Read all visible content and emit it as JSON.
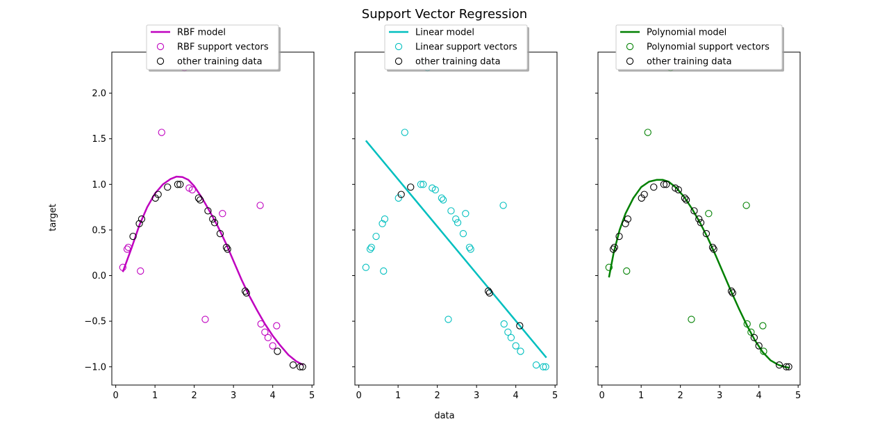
{
  "figure": {
    "title": "Support Vector Regression",
    "xlabel": "data",
    "ylabel": "target"
  },
  "chart_data": [
    {
      "type": "scatter",
      "panel": "rbf",
      "color": "#bf00bf",
      "xlim": [
        -0.1,
        5.05
      ],
      "ylim": [
        -1.2,
        2.45
      ],
      "xticks": [
        0,
        1,
        2,
        3,
        4,
        5
      ],
      "yticks": [
        -1.0,
        -0.5,
        0.0,
        0.5,
        1.0,
        1.5,
        2.0
      ],
      "ytick_labels": [
        "−1.0",
        "−0.5",
        "0.0",
        "0.5",
        "1.0",
        "1.5",
        "2.0"
      ],
      "show_ytick_labels": true,
      "legend": {
        "placement": "upper-center",
        "model_label": "RBF model",
        "support_label": "RBF support vectors",
        "other_label": "other training data"
      },
      "model_curve": {
        "x": [
          0.18,
          0.4,
          0.6,
          0.8,
          1.0,
          1.2,
          1.4,
          1.55,
          1.7,
          1.85,
          2.0,
          2.2,
          2.4,
          2.6,
          2.8,
          3.0,
          3.2,
          3.4,
          3.6,
          3.8,
          4.0,
          4.2,
          4.4,
          4.6,
          4.78
        ],
        "y": [
          0.04,
          0.3,
          0.55,
          0.75,
          0.9,
          1.0,
          1.06,
          1.085,
          1.08,
          1.05,
          0.98,
          0.85,
          0.7,
          0.54,
          0.36,
          0.16,
          -0.04,
          -0.22,
          -0.38,
          -0.53,
          -0.66,
          -0.77,
          -0.87,
          -0.94,
          -0.98
        ]
      },
      "support_vectors": [
        [
          0.18,
          0.09
        ],
        [
          0.29,
          0.29
        ],
        [
          0.32,
          0.31
        ],
        [
          0.63,
          0.05
        ],
        [
          1.17,
          1.57
        ],
        [
          1.75,
          2.28
        ],
        [
          1.87,
          0.96
        ],
        [
          1.95,
          0.94
        ],
        [
          2.28,
          -0.48
        ],
        [
          2.72,
          0.68
        ],
        [
          3.68,
          0.77
        ],
        [
          3.7,
          -0.53
        ],
        [
          3.8,
          -0.62
        ],
        [
          3.88,
          -0.68
        ],
        [
          4.0,
          -0.77
        ],
        [
          4.1,
          -0.55
        ]
      ],
      "other_data": [
        [
          0.44,
          0.43
        ],
        [
          0.6,
          0.57
        ],
        [
          0.66,
          0.62
        ],
        [
          1.01,
          0.85
        ],
        [
          1.08,
          0.89
        ],
        [
          1.32,
          0.97
        ],
        [
          1.58,
          1.0
        ],
        [
          1.64,
          1.0
        ],
        [
          2.11,
          0.85
        ],
        [
          2.15,
          0.83
        ],
        [
          2.35,
          0.71
        ],
        [
          2.47,
          0.62
        ],
        [
          2.52,
          0.58
        ],
        [
          2.66,
          0.46
        ],
        [
          2.82,
          0.31
        ],
        [
          2.85,
          0.29
        ],
        [
          3.3,
          -0.17
        ],
        [
          3.33,
          -0.19
        ],
        [
          4.12,
          -0.83
        ],
        [
          4.52,
          -0.98
        ],
        [
          4.7,
          -1.0
        ],
        [
          4.76,
          -1.0
        ]
      ]
    },
    {
      "type": "scatter",
      "panel": "linear",
      "color": "#00bfbf",
      "xlim": [
        -0.1,
        5.05
      ],
      "ylim": [
        -1.2,
        2.45
      ],
      "xticks": [
        0,
        1,
        2,
        3,
        4,
        5
      ],
      "yticks": [
        -1.0,
        -0.5,
        0.0,
        0.5,
        1.0,
        1.5,
        2.0
      ],
      "show_ytick_labels": false,
      "legend": {
        "placement": "upper-center",
        "model_label": "Linear model",
        "support_label": "Linear support vectors",
        "other_label": "other training data"
      },
      "model_curve": {
        "x": [
          0.18,
          4.78
        ],
        "y": [
          1.48,
          -0.9
        ]
      },
      "support_vectors": [
        [
          0.18,
          0.09
        ],
        [
          0.29,
          0.29
        ],
        [
          0.32,
          0.31
        ],
        [
          0.44,
          0.43
        ],
        [
          0.6,
          0.57
        ],
        [
          0.63,
          0.05
        ],
        [
          0.66,
          0.62
        ],
        [
          1.01,
          0.85
        ],
        [
          1.17,
          1.57
        ],
        [
          1.58,
          1.0
        ],
        [
          1.64,
          1.0
        ],
        [
          1.75,
          2.28
        ],
        [
          1.87,
          0.96
        ],
        [
          1.95,
          0.94
        ],
        [
          2.11,
          0.85
        ],
        [
          2.15,
          0.83
        ],
        [
          2.28,
          -0.48
        ],
        [
          2.35,
          0.71
        ],
        [
          2.47,
          0.62
        ],
        [
          2.52,
          0.58
        ],
        [
          2.66,
          0.46
        ],
        [
          2.72,
          0.68
        ],
        [
          2.82,
          0.31
        ],
        [
          2.85,
          0.29
        ],
        [
          3.68,
          0.77
        ],
        [
          3.7,
          -0.53
        ],
        [
          3.8,
          -0.62
        ],
        [
          3.88,
          -0.68
        ],
        [
          4.0,
          -0.77
        ],
        [
          4.12,
          -0.83
        ],
        [
          4.52,
          -0.98
        ],
        [
          4.7,
          -1.0
        ],
        [
          4.76,
          -1.0
        ]
      ],
      "other_data": [
        [
          1.08,
          0.89
        ],
        [
          1.32,
          0.97
        ],
        [
          3.3,
          -0.17
        ],
        [
          3.33,
          -0.19
        ],
        [
          4.1,
          -0.55
        ]
      ]
    },
    {
      "type": "scatter",
      "panel": "polynomial",
      "color": "#008000",
      "xlim": [
        -0.1,
        5.05
      ],
      "ylim": [
        -1.2,
        2.45
      ],
      "xticks": [
        0,
        1,
        2,
        3,
        4,
        5
      ],
      "yticks": [
        -1.0,
        -0.5,
        0.0,
        0.5,
        1.0,
        1.5,
        2.0
      ],
      "show_ytick_labels": false,
      "legend": {
        "placement": "upper-center",
        "model_label": "Polynomial model",
        "support_label": "Polynomial support vectors",
        "other_label": "other training data"
      },
      "model_curve": {
        "x": [
          0.18,
          0.3,
          0.45,
          0.6,
          0.8,
          1.0,
          1.2,
          1.4,
          1.55,
          1.7,
          1.9,
          2.1,
          2.3,
          2.5,
          2.7,
          2.9,
          3.1,
          3.3,
          3.5,
          3.7,
          3.9,
          4.1,
          4.3,
          4.5,
          4.65,
          4.78
        ],
        "y": [
          -0.02,
          0.25,
          0.5,
          0.68,
          0.85,
          0.97,
          1.03,
          1.05,
          1.05,
          1.03,
          0.96,
          0.86,
          0.73,
          0.58,
          0.41,
          0.22,
          0.02,
          -0.18,
          -0.37,
          -0.55,
          -0.71,
          -0.84,
          -0.93,
          -0.98,
          -1.0,
          -1.01
        ]
      },
      "support_vectors": [
        [
          0.18,
          0.09
        ],
        [
          0.63,
          0.05
        ],
        [
          1.17,
          1.57
        ],
        [
          1.75,
          2.28
        ],
        [
          2.28,
          -0.48
        ],
        [
          2.72,
          0.68
        ],
        [
          3.68,
          0.77
        ],
        [
          3.7,
          -0.53
        ],
        [
          3.8,
          -0.62
        ],
        [
          4.1,
          -0.55
        ],
        [
          4.12,
          -0.83
        ]
      ],
      "other_data": [
        [
          0.29,
          0.29
        ],
        [
          0.32,
          0.31
        ],
        [
          0.44,
          0.43
        ],
        [
          0.6,
          0.57
        ],
        [
          0.66,
          0.62
        ],
        [
          1.01,
          0.85
        ],
        [
          1.08,
          0.89
        ],
        [
          1.32,
          0.97
        ],
        [
          1.58,
          1.0
        ],
        [
          1.64,
          1.0
        ],
        [
          1.87,
          0.96
        ],
        [
          1.95,
          0.94
        ],
        [
          2.11,
          0.85
        ],
        [
          2.15,
          0.83
        ],
        [
          2.35,
          0.71
        ],
        [
          2.47,
          0.62
        ],
        [
          2.52,
          0.58
        ],
        [
          2.66,
          0.46
        ],
        [
          2.82,
          0.31
        ],
        [
          2.85,
          0.29
        ],
        [
          3.3,
          -0.17
        ],
        [
          3.33,
          -0.19
        ],
        [
          3.88,
          -0.68
        ],
        [
          4.0,
          -0.77
        ],
        [
          4.52,
          -0.98
        ],
        [
          4.7,
          -1.0
        ],
        [
          4.76,
          -1.0
        ]
      ]
    }
  ]
}
